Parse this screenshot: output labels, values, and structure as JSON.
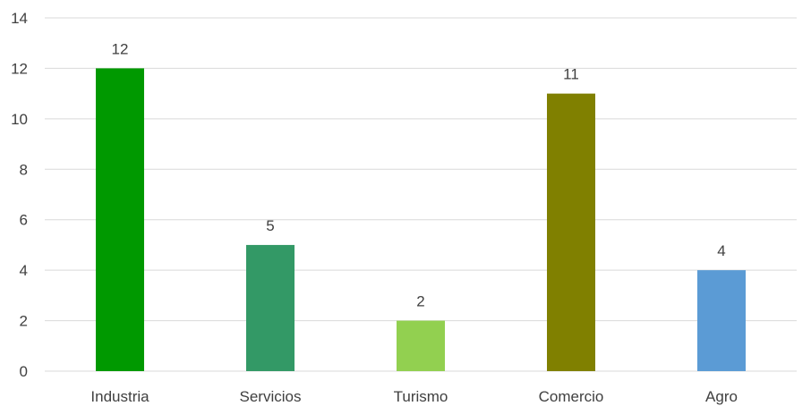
{
  "chart_data": {
    "type": "bar",
    "title": "",
    "xlabel": "",
    "ylabel": "",
    "categories": [
      "Industria",
      "Servicios",
      "Turismo",
      "Comercio",
      "Agro"
    ],
    "values": [
      12,
      5,
      2,
      11,
      4
    ],
    "colors": [
      "#009900",
      "#339966",
      "#92d050",
      "#808000",
      "#5b9bd5"
    ],
    "ylim": [
      0,
      14
    ],
    "yticks": [
      0,
      2,
      4,
      6,
      8,
      10,
      12,
      14
    ],
    "grid": true,
    "legend": "none"
  }
}
